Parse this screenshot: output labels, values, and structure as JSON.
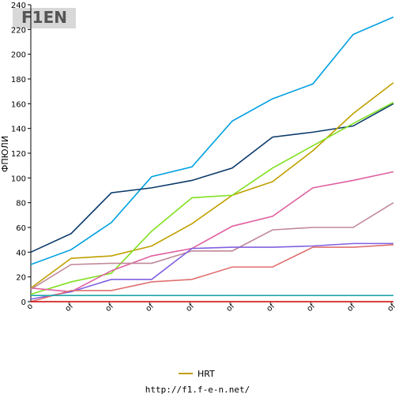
{
  "logo": "F1EN",
  "chart_data": {
    "type": "line",
    "y_label": "ФПЮЛИ",
    "categories": [
      "o",
      "of",
      "of",
      "of",
      "of",
      "of",
      "of",
      "of",
      "of",
      "of"
    ],
    "ylim": [
      0,
      240
    ],
    "yticks": [
      0,
      20,
      40,
      60,
      80,
      100,
      120,
      140,
      160,
      180,
      200,
      220,
      240
    ],
    "series": [
      {
        "color": "#00a0e0",
        "values": [
          30,
          42,
          64,
          101,
          109,
          146,
          164,
          176,
          216,
          230
        ]
      },
      {
        "color": "#0a3a6a",
        "values": [
          40,
          55,
          88,
          92,
          98,
          108,
          133,
          137,
          142,
          160
        ]
      },
      {
        "name": "HRT",
        "color": "#c0a000",
        "values": [
          11,
          35,
          37,
          45,
          63,
          86,
          97,
          122,
          152,
          177
        ]
      },
      {
        "color": "#80e020",
        "values": [
          6,
          16,
          23,
          57,
          84,
          86,
          108,
          126,
          144,
          161
        ]
      },
      {
        "color": "#e060a0",
        "values": [
          11,
          8,
          25,
          37,
          43,
          61,
          69,
          92,
          98,
          105
        ]
      },
      {
        "color": "#c08898",
        "values": [
          10,
          30,
          31,
          31,
          41,
          41,
          58,
          60,
          60,
          80
        ]
      },
      {
        "color": "#8060e0",
        "values": [
          2,
          8,
          18,
          18,
          43,
          44,
          44,
          45,
          47,
          47
        ]
      },
      {
        "color": "#e07070",
        "values": [
          0,
          9,
          9,
          16,
          18,
          28,
          28,
          44,
          44,
          46
        ]
      },
      {
        "color": "#20a8a8",
        "values": [
          5,
          5,
          5,
          5,
          5,
          5,
          5,
          5,
          5,
          5
        ]
      },
      {
        "color": "#cc0000",
        "values": [
          0,
          0,
          0,
          0,
          0,
          0,
          0,
          0,
          0,
          0
        ]
      }
    ]
  },
  "footer": "http://f1.f-e-n.net/"
}
